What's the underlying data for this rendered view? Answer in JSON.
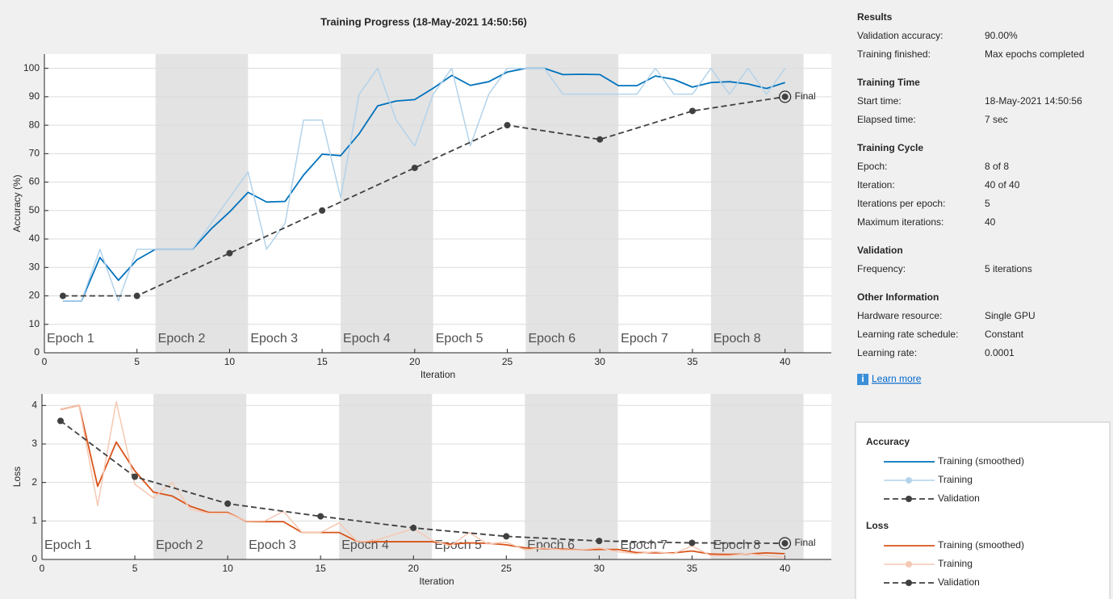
{
  "title": "Training Progress (18-May-2021 14:50:56)",
  "chart_data": [
    {
      "type": "line",
      "ylabel": "Accuracy (%)",
      "xlabel": "Iteration",
      "legend_title": "Accuracy",
      "annotation": "Final",
      "xlim": [
        0,
        42.5
      ],
      "ylim": [
        0,
        105
      ],
      "xticks": [
        0,
        5,
        10,
        15,
        20,
        25,
        30,
        35,
        40
      ],
      "yticks": [
        0,
        10,
        20,
        30,
        40,
        50,
        60,
        70,
        80,
        90,
        100
      ],
      "grid": true,
      "epochs": {
        "labels": [
          "Epoch 1",
          "Epoch 2",
          "Epoch 3",
          "Epoch 4",
          "Epoch 5",
          "Epoch 6",
          "Epoch 7",
          "Epoch 8"
        ],
        "starts": [
          0,
          6,
          11,
          16,
          21,
          26,
          31,
          36
        ],
        "ends": [
          6,
          11,
          16,
          21,
          26,
          31,
          36,
          41
        ]
      },
      "x": [
        1,
        2,
        3,
        4,
        5,
        6,
        7,
        8,
        9,
        10,
        11,
        12,
        13,
        14,
        15,
        16,
        17,
        18,
        19,
        20,
        21,
        22,
        23,
        24,
        25,
        26,
        27,
        28,
        29,
        30,
        31,
        32,
        33,
        34,
        35,
        36,
        37,
        38,
        39,
        40
      ],
      "series": [
        {
          "name": "Training (smoothed)",
          "color": "#0072bd",
          "width": 1.8,
          "values": [
            18.2,
            18.2,
            33.5,
            25.5,
            32.7,
            36.4,
            36.4,
            36.4,
            43.5,
            49.5,
            56.4,
            53,
            53.2,
            62.5,
            69.8,
            69.3,
            77,
            86.8,
            88.5,
            89,
            93,
            97.5,
            94,
            95.3,
            98.7,
            100,
            100,
            97.8,
            97.9,
            97.8,
            93.9,
            93.9,
            97.3,
            96.1,
            93.4,
            95,
            95.3,
            94.5,
            92.9,
            95
          ]
        },
        {
          "name": "Training",
          "color": "#b3d3ea",
          "width": 1.5,
          "values": [
            18.2,
            18.2,
            36.4,
            18.2,
            36.4,
            36.4,
            36.4,
            36.4,
            45.5,
            54.5,
            63.6,
            36.4,
            45.5,
            81.8,
            81.8,
            54.5,
            90.9,
            100,
            81.8,
            72.7,
            90.9,
            100,
            72.7,
            90.9,
            100,
            100,
            100,
            90.9,
            90.9,
            90.9,
            90.9,
            90.9,
            100,
            90.9,
            90.9,
            100,
            90.9,
            100,
            90.9,
            100
          ]
        },
        {
          "name": "Validation",
          "color": "#404040",
          "width": 1.8,
          "dashed": true,
          "markers": true,
          "x": [
            1,
            5,
            10,
            15,
            20,
            25,
            30,
            35,
            40
          ],
          "values": [
            20,
            20,
            35,
            50,
            65,
            80,
            75,
            85,
            90
          ]
        }
      ]
    },
    {
      "type": "line",
      "ylabel": "Loss",
      "xlabel": "Iteration",
      "legend_title": "Loss",
      "annotation": "Final",
      "xlim": [
        0,
        42.5
      ],
      "ylim": [
        0,
        4.3
      ],
      "xticks": [
        0,
        5,
        10,
        15,
        20,
        25,
        30,
        35,
        40
      ],
      "yticks": [
        0,
        1,
        2,
        3,
        4
      ],
      "grid": true,
      "epochs": {
        "labels": [
          "Epoch 1",
          "Epoch 2",
          "Epoch 3",
          "Epoch 4",
          "Epoch 5",
          "Epoch 6",
          "Epoch 7",
          "Epoch 8"
        ],
        "starts": [
          0,
          6,
          11,
          16,
          21,
          26,
          31,
          36
        ],
        "ends": [
          6,
          11,
          16,
          21,
          26,
          31,
          36,
          41
        ]
      },
      "x": [
        1,
        2,
        3,
        4,
        5,
        6,
        7,
        8,
        9,
        10,
        11,
        12,
        13,
        14,
        15,
        16,
        17,
        18,
        19,
        20,
        21,
        22,
        23,
        24,
        25,
        26,
        27,
        28,
        29,
        30,
        31,
        32,
        33,
        34,
        35,
        36,
        37,
        38,
        39,
        40
      ],
      "series": [
        {
          "name": "Training (smoothed)",
          "color": "#d95319",
          "width": 1.8,
          "values": [
            3.9,
            4.0,
            1.9,
            3.05,
            2.3,
            1.75,
            1.65,
            1.38,
            1.22,
            1.22,
            0.99,
            0.98,
            0.98,
            0.7,
            0.7,
            0.7,
            0.46,
            0.46,
            0.46,
            0.46,
            0.46,
            0.4,
            0.43,
            0.42,
            0.38,
            0.3,
            0.28,
            0.27,
            0.25,
            0.26,
            0.26,
            0.18,
            0.17,
            0.17,
            0.22,
            0.14,
            0.13,
            0.14,
            0.17,
            0.15
          ]
        },
        {
          "name": "Training",
          "color": "#f5c8b3",
          "width": 1.5,
          "values": [
            3.9,
            4.0,
            1.4,
            4.1,
            1.95,
            1.6,
            2.0,
            1.3,
            1.2,
            1.2,
            1.0,
            1.0,
            1.25,
            0.7,
            0.7,
            0.95,
            0.45,
            0.5,
            0.65,
            0.8,
            0.5,
            0.35,
            0.7,
            0.4,
            0.45,
            0.25,
            0.3,
            0.25,
            0.25,
            0.3,
            0.2,
            0.15,
            0.2,
            0.15,
            0.35,
            0.1,
            0.1,
            0.15,
            0.1,
            0.05
          ]
        },
        {
          "name": "Validation",
          "color": "#404040",
          "width": 1.8,
          "dashed": true,
          "markers": true,
          "x": [
            1,
            5,
            10,
            15,
            20,
            25,
            30,
            35,
            40
          ],
          "values": [
            3.6,
            2.15,
            1.45,
            1.12,
            0.82,
            0.6,
            0.48,
            0.43,
            0.42
          ]
        }
      ]
    }
  ],
  "panel": {
    "sections": [
      {
        "heading": "Results",
        "rows": [
          [
            "Validation accuracy:",
            "90.00%"
          ],
          [
            "Training finished:",
            "Max epochs completed"
          ]
        ]
      },
      {
        "heading": "Training Time",
        "rows": [
          [
            "Start time:",
            "18-May-2021 14:50:56"
          ],
          [
            "Elapsed time:",
            "7 sec"
          ]
        ]
      },
      {
        "heading": "Training Cycle",
        "rows": [
          [
            "Epoch:",
            "8 of 8"
          ],
          [
            "Iteration:",
            "40 of 40"
          ],
          [
            "Iterations per epoch:",
            "5"
          ],
          [
            "Maximum iterations:",
            "40"
          ]
        ]
      },
      {
        "heading": "Validation",
        "rows": [
          [
            "Frequency:",
            "5 iterations"
          ]
        ]
      },
      {
        "heading": "Other Information",
        "rows": [
          [
            "Hardware resource:",
            "Single GPU"
          ],
          [
            "Learning rate schedule:",
            "Constant"
          ],
          [
            "Learning rate:",
            "0.0001"
          ]
        ]
      }
    ],
    "link": "Learn more"
  }
}
